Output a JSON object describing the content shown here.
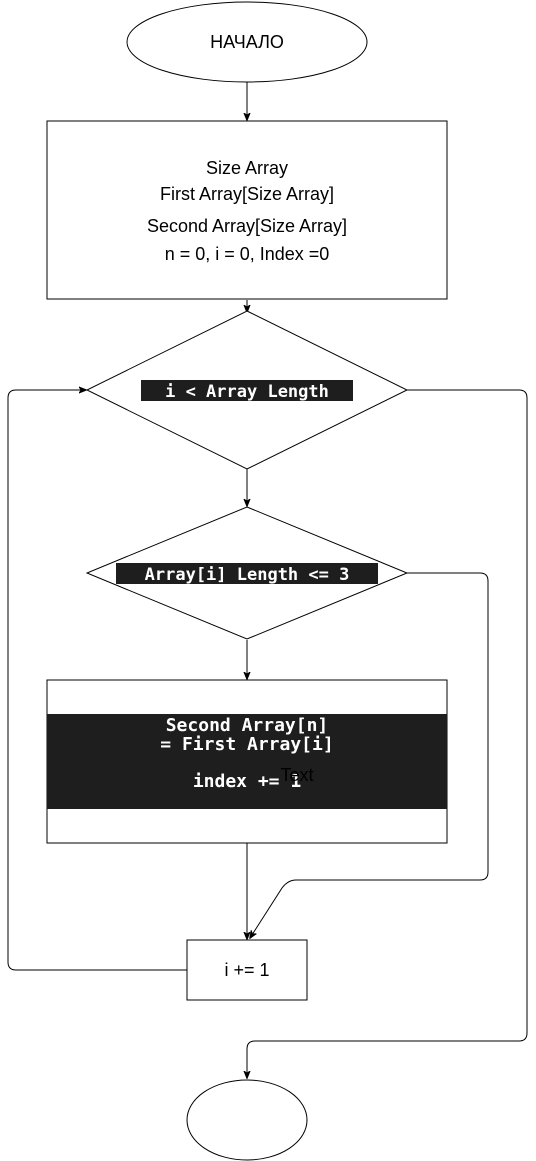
{
  "start": {
    "label": "НАЧАЛО"
  },
  "init_block": {
    "lines": [
      "Size Array",
      "First Array[Size Array]",
      "Second Array[Size Array]",
      "n = 0, i = 0, Index =0"
    ]
  },
  "loop_condition": {
    "label": "i < Array Length"
  },
  "length_condition": {
    "label": "Array[i] Length <= 3"
  },
  "assign_block": {
    "lines": [
      "Second Array[n]",
      "= First Array[i]",
      "index += 1"
    ],
    "overlay_label": "Text"
  },
  "increment_block": {
    "label": "i += 1"
  },
  "end": {
    "label": ""
  }
}
